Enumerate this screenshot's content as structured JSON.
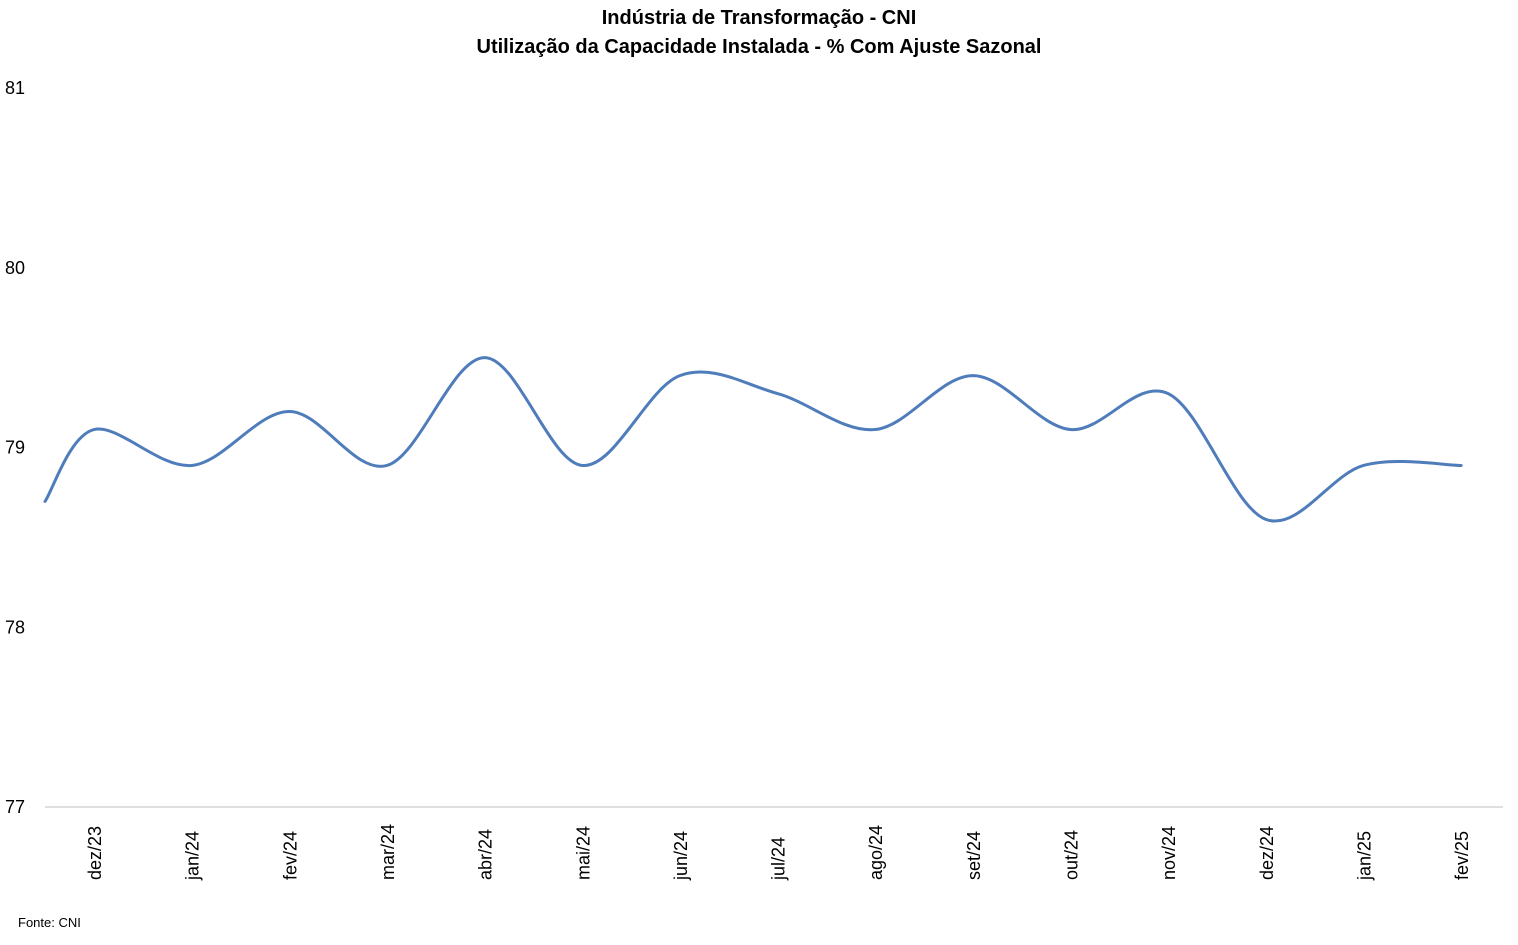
{
  "chart_data": {
    "type": "line",
    "title": "Indústria de Transformação - CNI",
    "subtitle": "Utilização da Capacidade Instalada - % Com Ajuste Sazonal",
    "xlabel": "",
    "ylabel": "",
    "categories": [
      "dez/23",
      "jan/24",
      "fev/24",
      "mar/24",
      "abr/24",
      "mai/24",
      "jun/24",
      "jul/24",
      "ago/24",
      "set/24",
      "out/24",
      "nov/24",
      "dez/24",
      "jan/25",
      "fev/25"
    ],
    "values": [
      79.1,
      78.9,
      79.2,
      78.9,
      79.5,
      78.9,
      79.4,
      79.3,
      79.1,
      79.4,
      79.1,
      79.3,
      78.6,
      78.9,
      78.9
    ],
    "start_value": 78.7,
    "ylim": [
      77,
      81
    ],
    "yticks": [
      "81",
      "80",
      "79",
      "78",
      "77"
    ],
    "grid": false,
    "legend": "none",
    "line_color": "#4f7cba",
    "smooth": true
  },
  "source_note": "Fonte: CNI"
}
